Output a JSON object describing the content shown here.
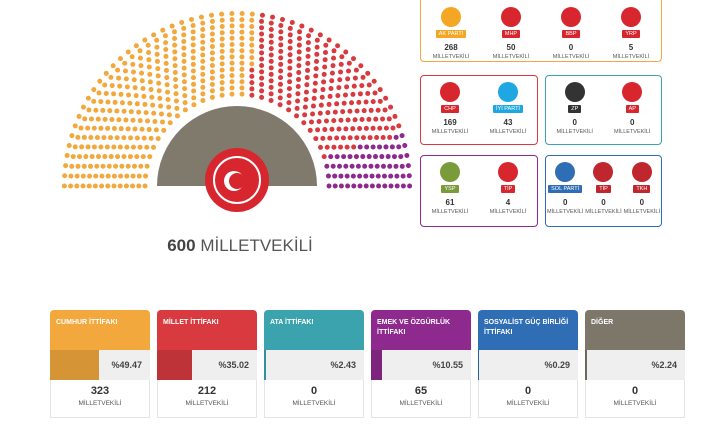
{
  "total_seats": 600,
  "unit": "MİLLETVEKİLİ",
  "alliances": [
    {
      "name": "CUMHUR İTTİFAKI",
      "color": "#f2a83c",
      "share": {
        "value": 49.47,
        "label": "%49.47"
      },
      "seats": 323,
      "parties": [
        {
          "name": "AK PARTİ",
          "seats": 268,
          "color": "#f5a623"
        },
        {
          "name": "MHP",
          "seats": 50,
          "color": "#d7262e"
        },
        {
          "name": "BBP",
          "seats": 0,
          "color": "#d7262e"
        },
        {
          "name": "YRP",
          "seats": 5,
          "color": "#d7262e"
        }
      ]
    },
    {
      "name": "MİLLET İTTİFAKI",
      "color": "#d83a3f",
      "share": {
        "value": 35.02,
        "label": "%35.02"
      },
      "seats": 212,
      "parties": [
        {
          "name": "CHP",
          "seats": 169,
          "color": "#d7262e"
        },
        {
          "name": "İYİ PARTİ",
          "seats": 43,
          "color": "#1ea7e0"
        }
      ]
    },
    {
      "name": "ATA İTTİFAKI",
      "color": "#3aa3ad",
      "share": {
        "value": 2.43,
        "label": "%2.43"
      },
      "seats": 0,
      "parties": [
        {
          "name": "ZP",
          "seats": 0,
          "color": "#333333"
        },
        {
          "name": "AP",
          "seats": 0,
          "color": "#d7262e"
        }
      ]
    },
    {
      "name": "EMEK VE ÖZGÜRLÜK İTTİFAKI",
      "color": "#8e2a8e",
      "share": {
        "value": 10.55,
        "label": "%10.55"
      },
      "seats": 65,
      "parties": [
        {
          "name": "YSP",
          "seats": 61,
          "color": "#7a9b3a"
        },
        {
          "name": "TİP",
          "seats": 4,
          "color": "#d7262e"
        }
      ]
    },
    {
      "name": "SOSYALİST GÜÇ BİRLİĞİ İTTİFAKI",
      "color": "#2f6db5",
      "share": {
        "value": 0.29,
        "label": "%0.29"
      },
      "seats": 0,
      "parties": [
        {
          "name": "SOL PARTİ",
          "seats": 0,
          "color": "#2f6db5"
        },
        {
          "name": "TİP",
          "seats": 0,
          "color": "#c0262d"
        },
        {
          "name": "TKH",
          "seats": 0,
          "color": "#c0262d"
        }
      ]
    },
    {
      "name": "DİĞER",
      "color": "#7d776a",
      "share": {
        "value": 2.24,
        "label": "%2.24"
      },
      "seats": 0,
      "parties": []
    }
  ]
}
